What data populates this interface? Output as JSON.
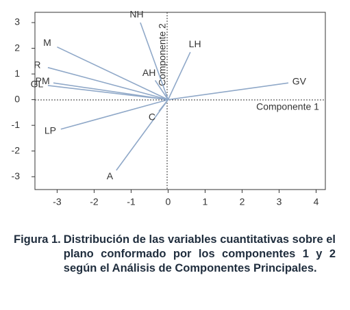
{
  "chart_data": {
    "type": "biplot",
    "labels": [
      "NH",
      "M",
      "R",
      "PM",
      "GL",
      "LP",
      "A",
      "AH",
      "C",
      "LH",
      "GV"
    ],
    "x": [
      -0.75,
      -3.0,
      -3.25,
      -3.1,
      -3.25,
      -2.9,
      -1.4,
      -0.35,
      -0.25,
      0.6,
      3.25
    ],
    "y": [
      3.0,
      2.05,
      1.25,
      0.65,
      0.55,
      -1.15,
      -2.75,
      0.75,
      -0.45,
      1.85,
      0.65
    ],
    "color": "#8fa8c8",
    "xlabel": "Componente 1",
    "ylabel": "Componente 2",
    "xlim": [
      -3.6,
      4.25
    ],
    "ylim": [
      -3.5,
      3.4
    ],
    "xticks": [
      -3,
      -2,
      -1,
      0,
      1,
      2,
      3,
      4
    ],
    "yticks": [
      -3,
      -2,
      -1,
      0,
      1,
      2,
      3
    ]
  },
  "caption": {
    "label": "Figura 1.",
    "text": "Distribución de las variables cuantitativas sobre el plano conformado por los componentes 1 y 2 según el Análisis de Componentes Principales."
  }
}
